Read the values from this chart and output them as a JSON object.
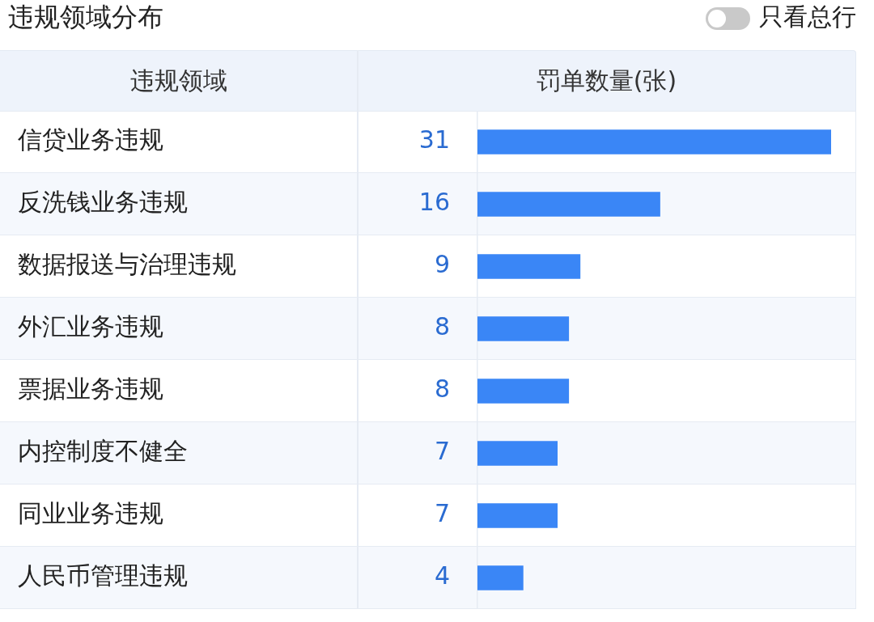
{
  "chart_data": {
    "type": "bar",
    "orientation": "horizontal",
    "title": "违规领域分布",
    "ylabel": "违规领域",
    "xlabel": "罚单数量(张)",
    "annotations": [
      "只看总行"
    ],
    "categories": [
      "信贷业务违规",
      "反洗钱业务违规",
      "数据报送与治理违规",
      "外汇业务违规",
      "票据业务违规",
      "内控制度不健全",
      "同业业务违规",
      "人民币管理违规"
    ],
    "values": [
      31,
      16,
      9,
      8,
      8,
      7,
      7,
      4
    ],
    "color": "#3a86f6",
    "data_labels": true
  }
}
